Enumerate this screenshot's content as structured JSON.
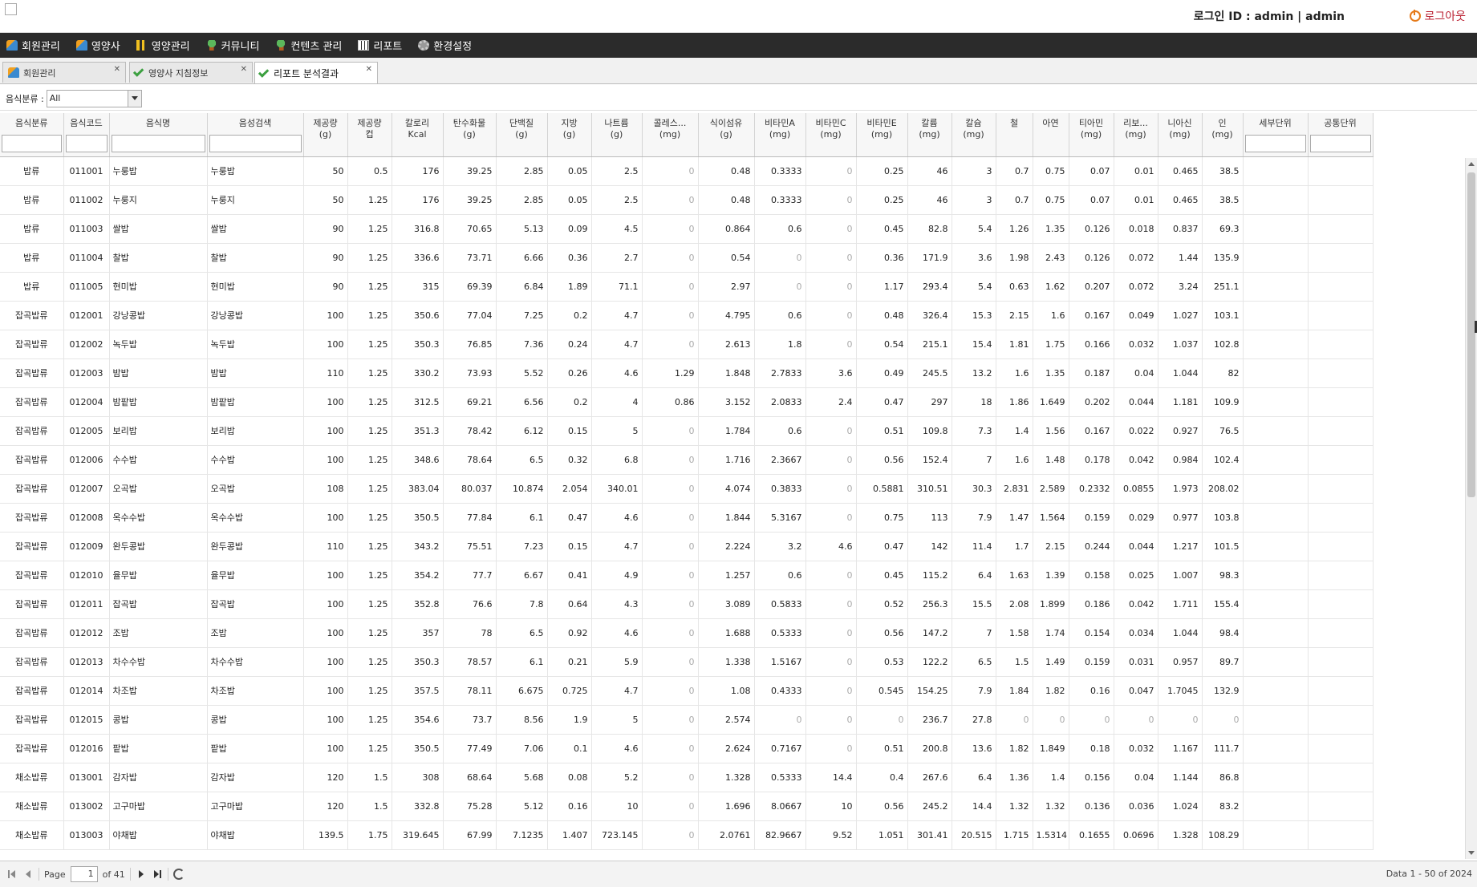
{
  "header": {
    "login_info": "로그인 ID : admin | admin",
    "logout_label": "로그아웃"
  },
  "menu": [
    {
      "label": "회원관리",
      "icon": "people-icon"
    },
    {
      "label": "영양사",
      "icon": "people-icon"
    },
    {
      "label": "영양관리",
      "icon": "fork-icon"
    },
    {
      "label": "커뮤니티",
      "icon": "plant-icon"
    },
    {
      "label": "컨텐츠 관리",
      "icon": "plant-icon"
    },
    {
      "label": "리포트",
      "icon": "report-icon"
    },
    {
      "label": "환경설정",
      "icon": "gear-icon"
    }
  ],
  "tabs": [
    {
      "label": "회원관리",
      "active": false
    },
    {
      "label": "영양사 지침정보",
      "active": false
    },
    {
      "label": "리포트 분석결과",
      "active": true
    }
  ],
  "filter": {
    "label": "음식분류 :",
    "value": "All"
  },
  "columns": [
    {
      "h1": "음식분류",
      "h2": "",
      "filter": true
    },
    {
      "h1": "음식코드",
      "h2": "",
      "filter": true
    },
    {
      "h1": "음식명",
      "h2": "",
      "filter": true
    },
    {
      "h1": "음성검색",
      "h2": "",
      "filter": true
    },
    {
      "h1": "제공량",
      "h2": "(g)",
      "filter": false
    },
    {
      "h1": "제공량",
      "h2": "컵",
      "filter": false
    },
    {
      "h1": "칼로리",
      "h2": "Kcal",
      "filter": false
    },
    {
      "h1": "탄수화물",
      "h2": "(g)",
      "filter": false
    },
    {
      "h1": "단백질",
      "h2": "(g)",
      "filter": false
    },
    {
      "h1": "지방",
      "h2": "(g)",
      "filter": false
    },
    {
      "h1": "나트륨",
      "h2": "(g)",
      "filter": false
    },
    {
      "h1": "콜레스...",
      "h2": "(mg)",
      "filter": false
    },
    {
      "h1": "식이섬유",
      "h2": "(g)",
      "filter": false
    },
    {
      "h1": "비타민A",
      "h2": "(mg)",
      "filter": false
    },
    {
      "h1": "비타민C",
      "h2": "(mg)",
      "filter": false
    },
    {
      "h1": "비타민E",
      "h2": "(mg)",
      "filter": false
    },
    {
      "h1": "칼륨",
      "h2": "(mg)",
      "filter": false
    },
    {
      "h1": "칼슘",
      "h2": "(mg)",
      "filter": false
    },
    {
      "h1": "철",
      "h2": "",
      "filter": false
    },
    {
      "h1": "아연",
      "h2": "",
      "filter": false
    },
    {
      "h1": "티아민",
      "h2": "(mg)",
      "filter": false
    },
    {
      "h1": "리보...",
      "h2": "(mg)",
      "filter": false
    },
    {
      "h1": "니아신",
      "h2": "(mg)",
      "filter": false
    },
    {
      "h1": "인",
      "h2": "(mg)",
      "filter": false
    },
    {
      "h1": "세부단위",
      "h2": "",
      "filter": true
    },
    {
      "h1": "공통단위",
      "h2": "",
      "filter": true
    }
  ],
  "rows": [
    [
      "밥류",
      "011001",
      "누룽밥",
      "누룽밥",
      "50",
      "0.5",
      "176",
      "39.25",
      "2.85",
      "0.05",
      "2.5",
      "0",
      "0.48",
      "0.3333",
      "0",
      "0.25",
      "46",
      "3",
      "0.7",
      "0.75",
      "0.07",
      "0.01",
      "0.465",
      "38.5",
      "",
      ""
    ],
    [
      "밥류",
      "011002",
      "누룽지",
      "누룽지",
      "50",
      "1.25",
      "176",
      "39.25",
      "2.85",
      "0.05",
      "2.5",
      "0",
      "0.48",
      "0.3333",
      "0",
      "0.25",
      "46",
      "3",
      "0.7",
      "0.75",
      "0.07",
      "0.01",
      "0.465",
      "38.5",
      "",
      ""
    ],
    [
      "밥류",
      "011003",
      "쌀밥",
      "쌀밥",
      "90",
      "1.25",
      "316.8",
      "70.65",
      "5.13",
      "0.09",
      "4.5",
      "0",
      "0.864",
      "0.6",
      "0",
      "0.45",
      "82.8",
      "5.4",
      "1.26",
      "1.35",
      "0.126",
      "0.018",
      "0.837",
      "69.3",
      "",
      ""
    ],
    [
      "밥류",
      "011004",
      "찰밥",
      "찰밥",
      "90",
      "1.25",
      "336.6",
      "73.71",
      "6.66",
      "0.36",
      "2.7",
      "0",
      "0.54",
      "0",
      "0",
      "0.36",
      "171.9",
      "3.6",
      "1.98",
      "2.43",
      "0.126",
      "0.072",
      "1.44",
      "135.9",
      "",
      ""
    ],
    [
      "밥류",
      "011005",
      "현미밥",
      "현미밥",
      "90",
      "1.25",
      "315",
      "69.39",
      "6.84",
      "1.89",
      "71.1",
      "0",
      "2.97",
      "0",
      "0",
      "1.17",
      "293.4",
      "5.4",
      "0.63",
      "1.62",
      "0.207",
      "0.072",
      "3.24",
      "251.1",
      "",
      ""
    ],
    [
      "잡곡밥류",
      "012001",
      "강낭콩밥",
      "강낭콩밥",
      "100",
      "1.25",
      "350.6",
      "77.04",
      "7.25",
      "0.2",
      "4.7",
      "0",
      "4.795",
      "0.6",
      "0",
      "0.48",
      "326.4",
      "15.3",
      "2.15",
      "1.6",
      "0.167",
      "0.049",
      "1.027",
      "103.1",
      "",
      ""
    ],
    [
      "잡곡밥류",
      "012002",
      "녹두밥",
      "녹두밥",
      "100",
      "1.25",
      "350.3",
      "76.85",
      "7.36",
      "0.24",
      "4.7",
      "0",
      "2.613",
      "1.8",
      "0",
      "0.54",
      "215.1",
      "15.4",
      "1.81",
      "1.75",
      "0.166",
      "0.032",
      "1.037",
      "102.8",
      "",
      ""
    ],
    [
      "잡곡밥류",
      "012003",
      "밤밥",
      "밤밥",
      "110",
      "1.25",
      "330.2",
      "73.93",
      "5.52",
      "0.26",
      "4.6",
      "1.29",
      "1.848",
      "2.7833",
      "3.6",
      "0.49",
      "245.5",
      "13.2",
      "1.6",
      "1.35",
      "0.187",
      "0.04",
      "1.044",
      "82",
      "",
      ""
    ],
    [
      "잡곡밥류",
      "012004",
      "밤팥밥",
      "밤팥밥",
      "100",
      "1.25",
      "312.5",
      "69.21",
      "6.56",
      "0.2",
      "4",
      "0.86",
      "3.152",
      "2.0833",
      "2.4",
      "0.47",
      "297",
      "18",
      "1.86",
      "1.649",
      "0.202",
      "0.044",
      "1.181",
      "109.9",
      "",
      ""
    ],
    [
      "잡곡밥류",
      "012005",
      "보리밥",
      "보리밥",
      "100",
      "1.25",
      "351.3",
      "78.42",
      "6.12",
      "0.15",
      "5",
      "0",
      "1.784",
      "0.6",
      "0",
      "0.51",
      "109.8",
      "7.3",
      "1.4",
      "1.56",
      "0.167",
      "0.022",
      "0.927",
      "76.5",
      "",
      ""
    ],
    [
      "잡곡밥류",
      "012006",
      "수수밥",
      "수수밥",
      "100",
      "1.25",
      "348.6",
      "78.64",
      "6.5",
      "0.32",
      "6.8",
      "0",
      "1.716",
      "2.3667",
      "0",
      "0.56",
      "152.4",
      "7",
      "1.6",
      "1.48",
      "0.178",
      "0.042",
      "0.984",
      "102.4",
      "",
      ""
    ],
    [
      "잡곡밥류",
      "012007",
      "오곡밥",
      "오곡밥",
      "108",
      "1.25",
      "383.04",
      "80.037",
      "10.874",
      "2.054",
      "340.01",
      "0",
      "4.074",
      "0.3833",
      "0",
      "0.5881",
      "310.51",
      "30.3",
      "2.831",
      "2.589",
      "0.2332",
      "0.0855",
      "1.973",
      "208.02",
      "",
      ""
    ],
    [
      "잡곡밥류",
      "012008",
      "옥수수밥",
      "옥수수밥",
      "100",
      "1.25",
      "350.5",
      "77.84",
      "6.1",
      "0.47",
      "4.6",
      "0",
      "1.844",
      "5.3167",
      "0",
      "0.75",
      "113",
      "7.9",
      "1.47",
      "1.564",
      "0.159",
      "0.029",
      "0.977",
      "103.8",
      "",
      ""
    ],
    [
      "잡곡밥류",
      "012009",
      "완두콩밥",
      "완두콩밥",
      "110",
      "1.25",
      "343.2",
      "75.51",
      "7.23",
      "0.15",
      "4.7",
      "0",
      "2.224",
      "3.2",
      "4.6",
      "0.47",
      "142",
      "11.4",
      "1.7",
      "2.15",
      "0.244",
      "0.044",
      "1.217",
      "101.5",
      "",
      ""
    ],
    [
      "잡곡밥류",
      "012010",
      "율무밥",
      "율무밥",
      "100",
      "1.25",
      "354.2",
      "77.7",
      "6.67",
      "0.41",
      "4.9",
      "0",
      "1.257",
      "0.6",
      "0",
      "0.45",
      "115.2",
      "6.4",
      "1.63",
      "1.39",
      "0.158",
      "0.025",
      "1.007",
      "98.3",
      "",
      ""
    ],
    [
      "잡곡밥류",
      "012011",
      "잡곡밥",
      "잡곡밥",
      "100",
      "1.25",
      "352.8",
      "76.6",
      "7.8",
      "0.64",
      "4.3",
      "0",
      "3.089",
      "0.5833",
      "0",
      "0.52",
      "256.3",
      "15.5",
      "2.08",
      "1.899",
      "0.186",
      "0.042",
      "1.711",
      "155.4",
      "",
      ""
    ],
    [
      "잡곡밥류",
      "012012",
      "조밥",
      "조밥",
      "100",
      "1.25",
      "357",
      "78",
      "6.5",
      "0.92",
      "4.6",
      "0",
      "1.688",
      "0.5333",
      "0",
      "0.56",
      "147.2",
      "7",
      "1.58",
      "1.74",
      "0.154",
      "0.034",
      "1.044",
      "98.4",
      "",
      ""
    ],
    [
      "잡곡밥류",
      "012013",
      "차수수밥",
      "차수수밥",
      "100",
      "1.25",
      "350.3",
      "78.57",
      "6.1",
      "0.21",
      "5.9",
      "0",
      "1.338",
      "1.5167",
      "0",
      "0.53",
      "122.2",
      "6.5",
      "1.5",
      "1.49",
      "0.159",
      "0.031",
      "0.957",
      "89.7",
      "",
      ""
    ],
    [
      "잡곡밥류",
      "012014",
      "차조밥",
      "차조밥",
      "100",
      "1.25",
      "357.5",
      "78.11",
      "6.675",
      "0.725",
      "4.7",
      "0",
      "1.08",
      "0.4333",
      "0",
      "0.545",
      "154.25",
      "7.9",
      "1.84",
      "1.82",
      "0.16",
      "0.047",
      "1.7045",
      "132.9",
      "",
      ""
    ],
    [
      "잡곡밥류",
      "012015",
      "콩밥",
      "콩밥",
      "100",
      "1.25",
      "354.6",
      "73.7",
      "8.56",
      "1.9",
      "5",
      "0",
      "2.574",
      "0",
      "0",
      "0",
      "236.7",
      "27.8",
      "0",
      "0",
      "0",
      "0",
      "0",
      "0",
      "",
      ""
    ],
    [
      "잡곡밥류",
      "012016",
      "팥밥",
      "팥밥",
      "100",
      "1.25",
      "350.5",
      "77.49",
      "7.06",
      "0.1",
      "4.6",
      "0",
      "2.624",
      "0.7167",
      "0",
      "0.51",
      "200.8",
      "13.6",
      "1.82",
      "1.849",
      "0.18",
      "0.032",
      "1.167",
      "111.7",
      "",
      ""
    ],
    [
      "채소밥류",
      "013001",
      "감자밥",
      "감자밥",
      "120",
      "1.5",
      "308",
      "68.64",
      "5.68",
      "0.08",
      "5.2",
      "0",
      "1.328",
      "0.5333",
      "14.4",
      "0.4",
      "267.6",
      "6.4",
      "1.36",
      "1.4",
      "0.156",
      "0.04",
      "1.144",
      "86.8",
      "",
      ""
    ],
    [
      "채소밥류",
      "013002",
      "고구마밥",
      "고구마밥",
      "120",
      "1.5",
      "332.8",
      "75.28",
      "5.12",
      "0.16",
      "10",
      "0",
      "1.696",
      "8.0667",
      "10",
      "0.56",
      "245.2",
      "14.4",
      "1.32",
      "1.32",
      "0.136",
      "0.036",
      "1.024",
      "83.2",
      "",
      ""
    ],
    [
      "채소밥류",
      "013003",
      "야채밥",
      "야채밥",
      "139.5",
      "1.75",
      "319.645",
      "67.99",
      "7.1235",
      "1.407",
      "723.145",
      "0",
      "2.0761",
      "82.9667",
      "9.52",
      "1.051",
      "301.41",
      "20.515",
      "1.715",
      "1.5314",
      "0.1655",
      "0.0696",
      "1.328",
      "108.29",
      "",
      ""
    ]
  ],
  "pager": {
    "page_label": "Page",
    "page_value": "1",
    "of_label": "of 41",
    "info": "Data 1 - 50 of 2024"
  }
}
